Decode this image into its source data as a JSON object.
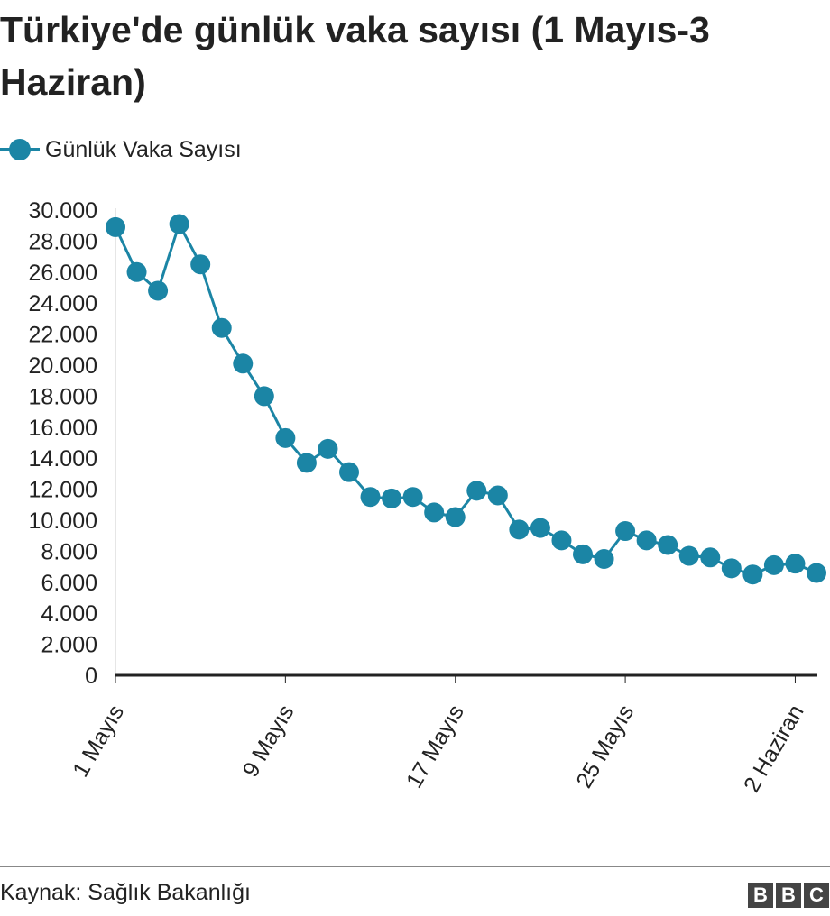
{
  "title": "Türkiye'de günlük vaka sayısı (1 Mayıs-3 Haziran)",
  "legend": {
    "label": "Günlük Vaka Sayısı",
    "icon": "line-with-dot-marker"
  },
  "source": "Kaynak: Sağlık Bakanlığı",
  "logo": {
    "letters": [
      "B",
      "B",
      "C"
    ]
  },
  "colors": {
    "series": "#1b85a5",
    "axis": "#222222",
    "text": "#222222",
    "logo_bg": "#444444"
  },
  "chart_data": {
    "type": "line",
    "title": "Türkiye'de günlük vaka sayısı (1 Mayıs-3 Haziran)",
    "xlabel": "",
    "ylabel": "",
    "ylim": [
      0,
      30000
    ],
    "yticks": [
      0,
      2000,
      4000,
      6000,
      8000,
      10000,
      12000,
      14000,
      16000,
      18000,
      20000,
      22000,
      24000,
      26000,
      28000,
      30000
    ],
    "ytick_labels": [
      "0",
      "2.000",
      "4.000",
      "6.000",
      "8.000",
      "10.000",
      "12.000",
      "14.000",
      "16.000",
      "18.000",
      "20.000",
      "22.000",
      "24.000",
      "26.000",
      "28.000",
      "30.000"
    ],
    "xtick_labels": [
      "1 Mayıs",
      "9 Mayıs",
      "17 Mayıs",
      "25 Mayıs",
      "2 Haziran"
    ],
    "xtick_days": [
      1,
      9,
      17,
      25,
      33
    ],
    "grid": false,
    "legend_position": "top-left",
    "series": [
      {
        "name": "Günlük Vaka Sayısı",
        "values": [
          28900,
          26000,
          24800,
          29100,
          26500,
          22400,
          20100,
          18000,
          15300,
          13700,
          14600,
          13100,
          11500,
          11400,
          11500,
          10500,
          10200,
          11900,
          11600,
          9400,
          9500,
          8700,
          7800,
          7500,
          9300,
          8700,
          8400,
          7700,
          7600,
          6900,
          6500,
          7100,
          7200,
          6600
        ]
      }
    ]
  }
}
